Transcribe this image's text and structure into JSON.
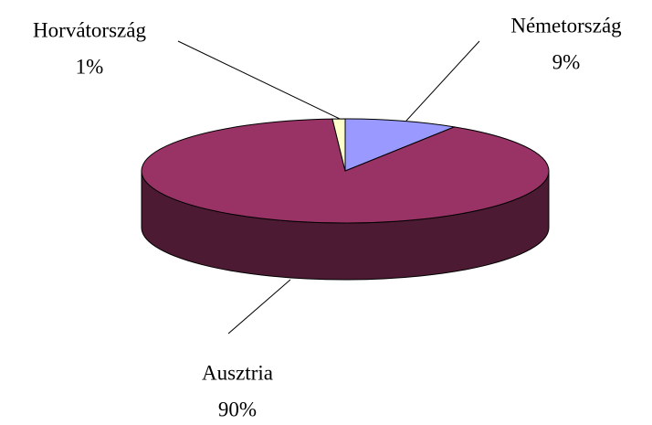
{
  "chart_data": {
    "type": "pie3d",
    "categories": [
      "Németország",
      "Ausztria",
      "Horvátország"
    ],
    "values": [
      9,
      90,
      1
    ],
    "value_labels": [
      "9%",
      "90%",
      "1%"
    ],
    "colors": [
      "#9999ff",
      "#993366",
      "#ffffcc"
    ]
  }
}
